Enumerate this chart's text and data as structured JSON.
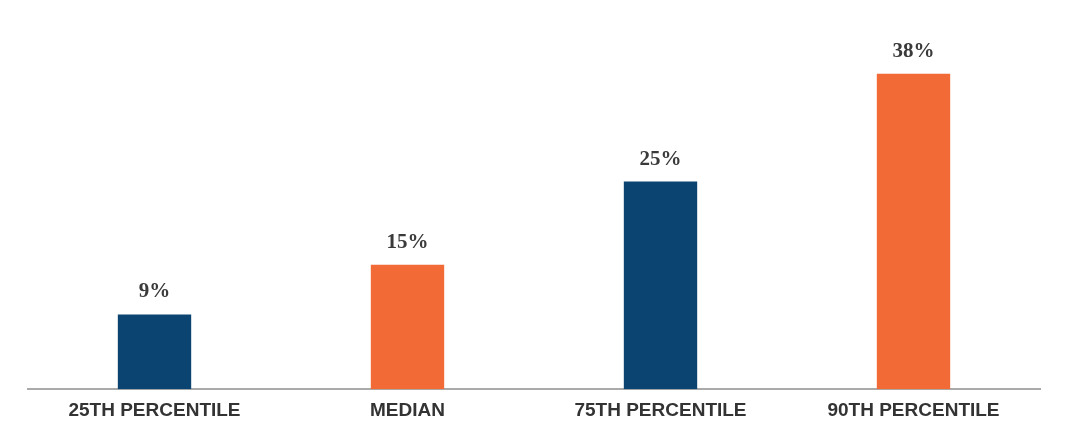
{
  "chart_data": {
    "type": "bar",
    "categories": [
      "25TH PERCENTILE",
      "MEDIAN",
      "75TH PERCENTILE",
      "90TH PERCENTILE"
    ],
    "values": [
      9,
      15,
      25,
      38
    ],
    "colors": [
      "#0b4470",
      "#f26a36",
      "#0b4470",
      "#f26a36"
    ],
    "value_labels": [
      "9%",
      "15%",
      "25%",
      "38%"
    ],
    "grid": false,
    "legend": false
  }
}
